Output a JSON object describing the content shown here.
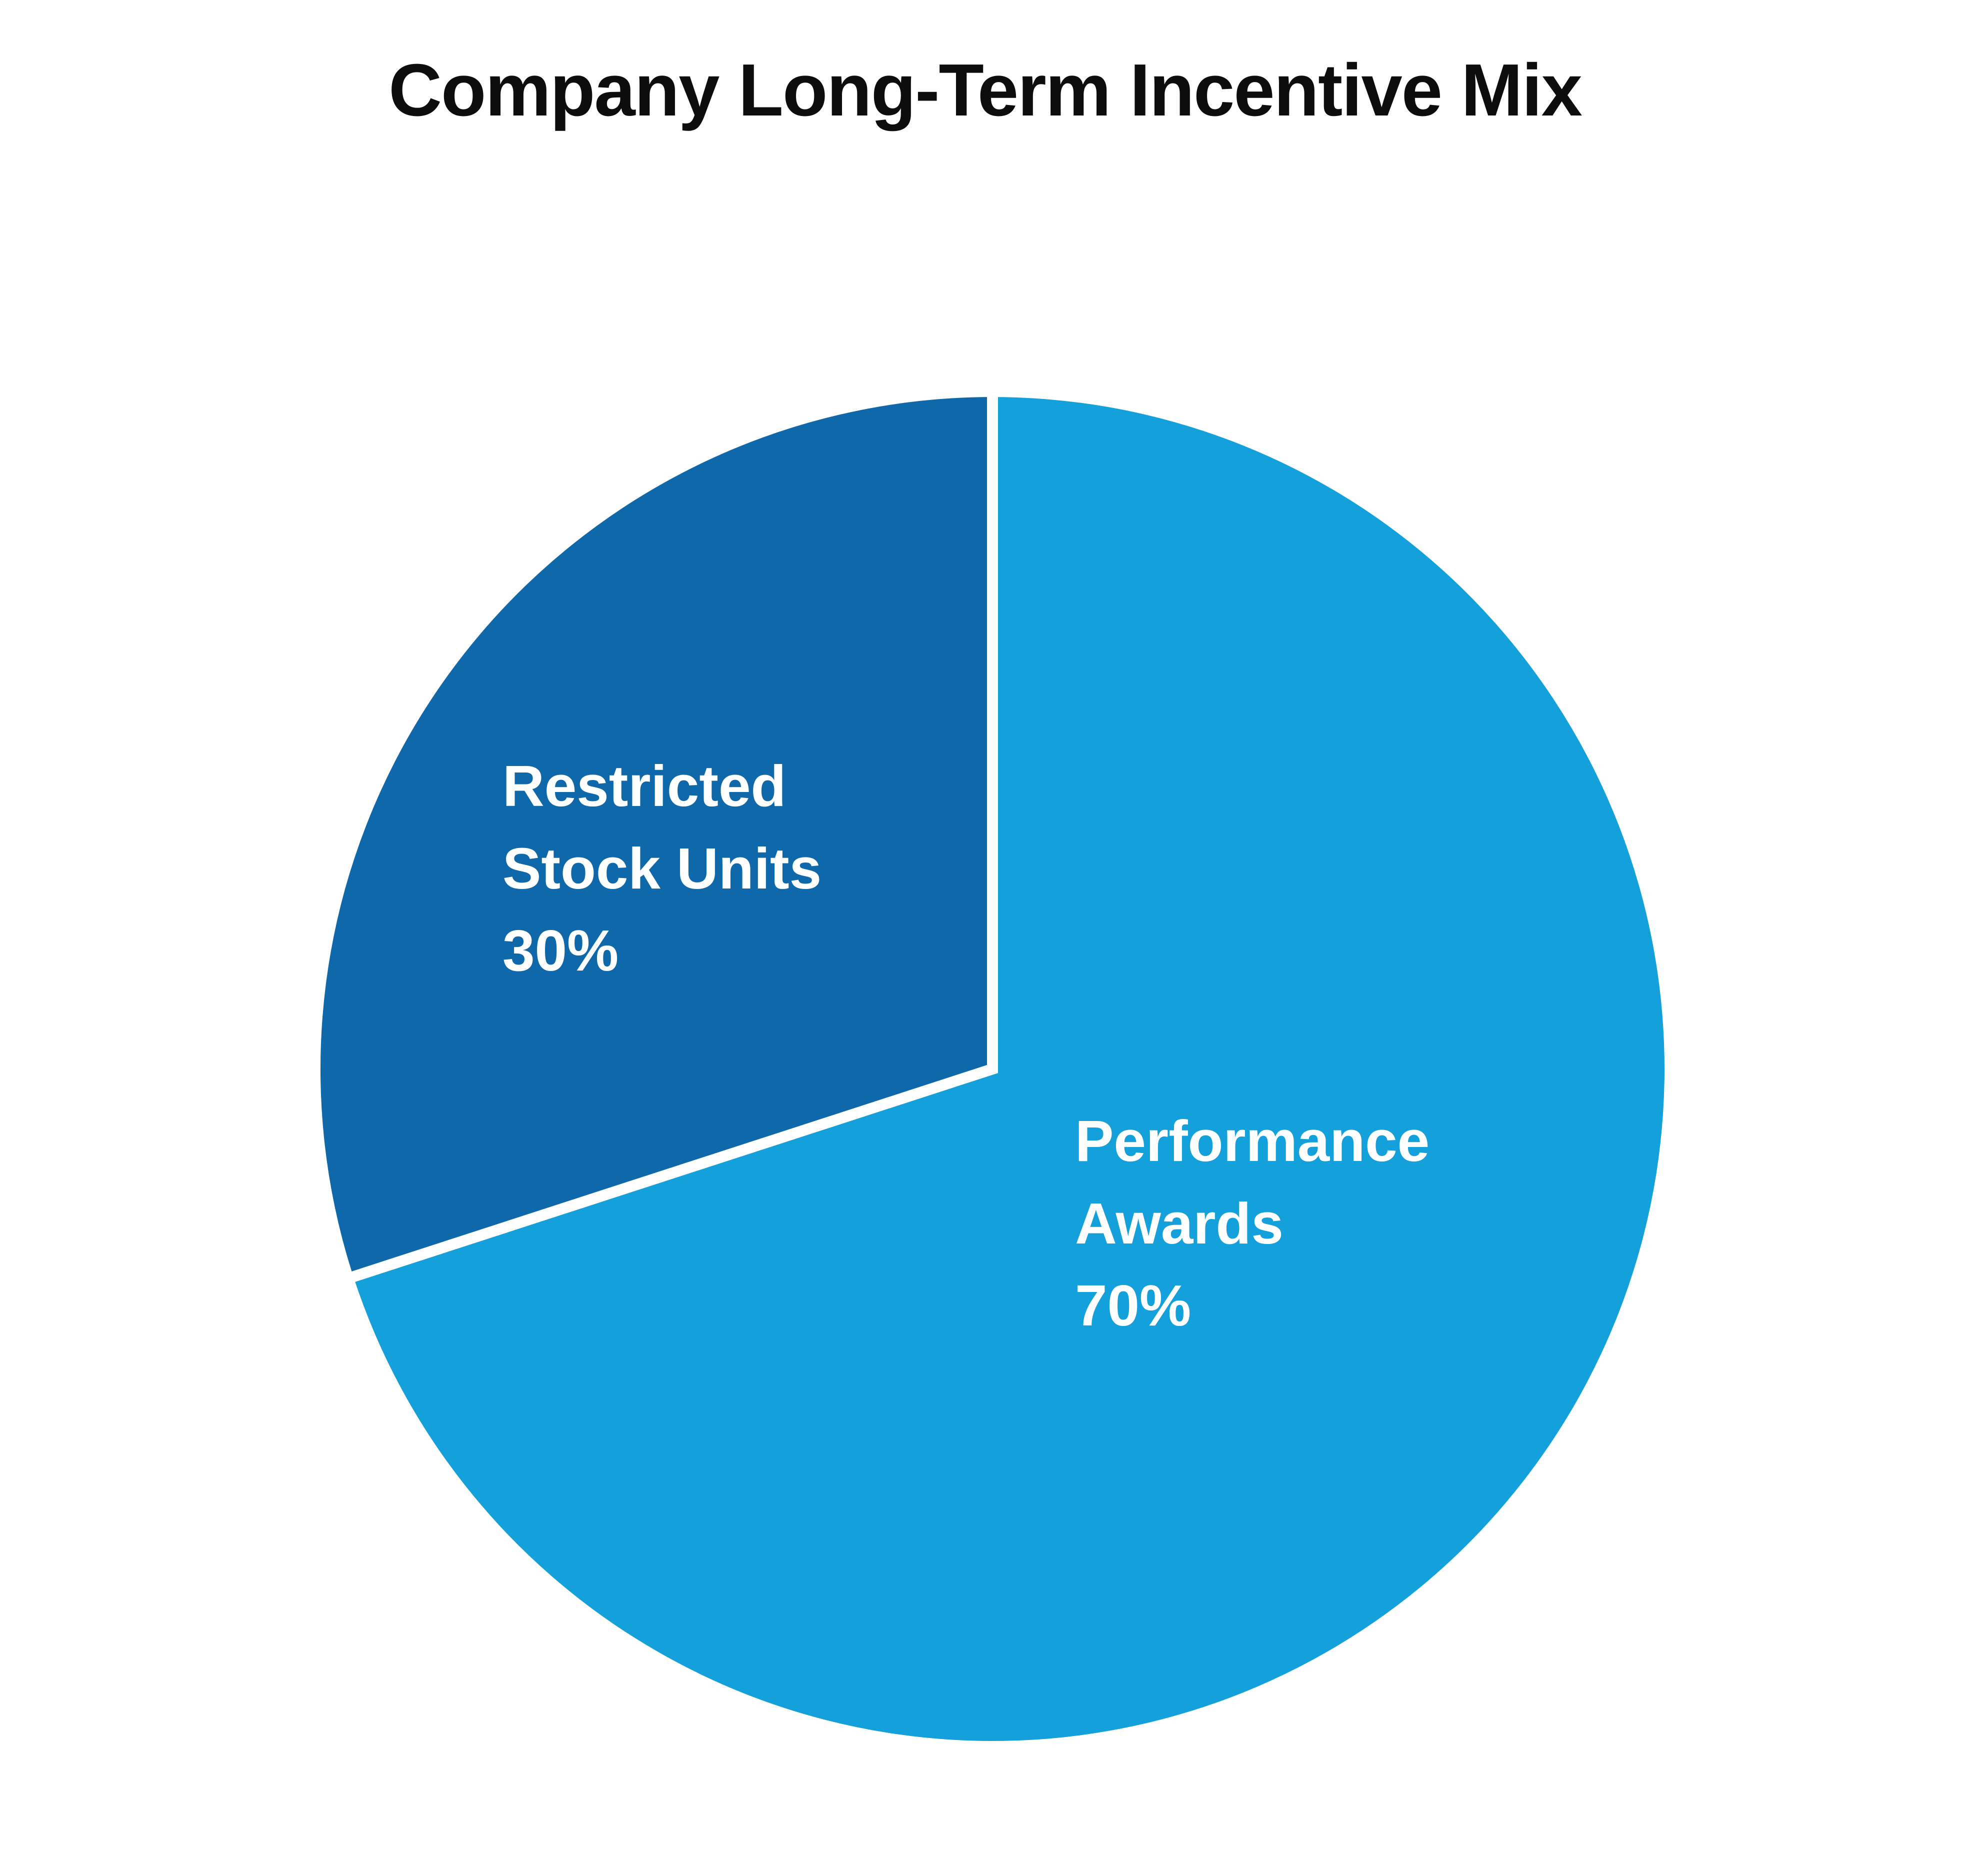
{
  "chart_data": {
    "type": "pie",
    "title": "Company Long-Term Incentive Mix",
    "start_angle_deg": 0,
    "direction": "clockwise",
    "legend": "none",
    "separator_color": "#ffffff",
    "label_color": "#ffffff",
    "slices": [
      {
        "name": "Performance Awards",
        "value": 70,
        "pct_label": "70%",
        "color": "#14A0DB"
      },
      {
        "name": "Restricted Stock Units",
        "value": 30,
        "pct_label": "30%",
        "color": "#0E68A9"
      }
    ]
  }
}
